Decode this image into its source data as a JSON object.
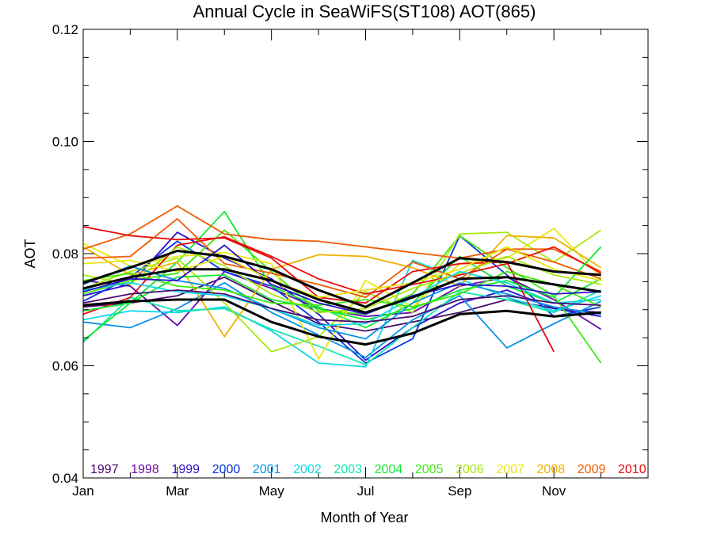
{
  "chart_data": {
    "type": "line",
    "title": "Annual Cycle in SeaWiFS(ST108) AOT(865)",
    "xlabel": "Month of Year",
    "ylabel": "AOT",
    "xlim": [
      1,
      13
    ],
    "ylim": [
      0.04,
      0.12
    ],
    "x_ticks": [
      {
        "x": 1,
        "label": "Jan"
      },
      {
        "x": 3,
        "label": "Mar"
      },
      {
        "x": 5,
        "label": "May"
      },
      {
        "x": 7,
        "label": "Jul"
      },
      {
        "x": 9,
        "label": "Sep"
      },
      {
        "x": 11,
        "label": "Nov"
      }
    ],
    "y_ticks": [
      {
        "y": 0.04,
        "label": "0.04"
      },
      {
        "y": 0.06,
        "label": "0.06"
      },
      {
        "y": 0.08,
        "label": "0.08"
      },
      {
        "y": 0.1,
        "label": "0.10"
      },
      {
        "y": 0.12,
        "label": "0.12"
      }
    ],
    "grid": false,
    "legend_position": "bottom, inside plot",
    "x": [
      1,
      2,
      3,
      4,
      5,
      6,
      7,
      8,
      9,
      10,
      11,
      12
    ],
    "series": [
      {
        "name": "1997",
        "color": "#4b0a6e",
        "values": [
          0.0705,
          0.0712,
          0.0725,
          0.0758,
          0.0715,
          0.0675,
          0.0662,
          0.0678,
          0.0695,
          0.0718,
          0.0702,
          0.0695
        ]
      },
      {
        "name": "1998",
        "color": "#6a0aa8",
        "values": [
          0.0752,
          0.0742,
          0.0672,
          0.0768,
          0.0738,
          0.0702,
          0.0688,
          0.0695,
          0.0742,
          0.0758,
          0.0718,
          0.0665
        ]
      },
      {
        "name": "1999",
        "color": "#2a10c8",
        "values": [
          0.0725,
          0.0745,
          0.0838,
          0.0792,
          0.0755,
          0.0692,
          0.061,
          0.0668,
          0.0712,
          0.0735,
          0.0702,
          0.0688
        ]
      },
      {
        "name": "2000",
        "color": "#0a35e0",
        "values": [
          0.0715,
          0.0758,
          0.0822,
          0.0768,
          0.0742,
          0.0678,
          0.0605,
          0.0648,
          0.0832,
          0.0762,
          0.0688,
          0.0705
        ]
      },
      {
        "name": "2001",
        "color": "#0a90e8",
        "values": [
          0.0678,
          0.0668,
          0.0702,
          0.0748,
          0.0695,
          0.0655,
          0.0615,
          0.0682,
          0.0725,
          0.0632,
          0.0675,
          0.0715
        ]
      },
      {
        "name": "2002",
        "color": "#10d8e8",
        "values": [
          0.0682,
          0.0698,
          0.0695,
          0.0705,
          0.0662,
          0.0605,
          0.0598,
          0.0788,
          0.0755,
          0.0722,
          0.0698,
          0.0725
        ]
      },
      {
        "name": "2003",
        "color": "#10e8b0",
        "values": [
          0.0642,
          0.0722,
          0.0698,
          0.0702,
          0.0665,
          0.0635,
          0.0602,
          0.0668,
          0.0732,
          0.0718,
          0.0695,
          0.0735
        ]
      },
      {
        "name": "2004",
        "color": "#10e830",
        "values": [
          0.0645,
          0.0712,
          0.0785,
          0.0875,
          0.0742,
          0.0705,
          0.0668,
          0.0712,
          0.0795,
          0.0742,
          0.0712,
          0.0755
        ]
      },
      {
        "name": "2005",
        "color": "#40e810",
        "values": [
          0.0728,
          0.0752,
          0.0765,
          0.0842,
          0.0768,
          0.0698,
          0.0692,
          0.0728,
          0.0832,
          0.0775,
          0.0725,
          0.0605
        ]
      },
      {
        "name": "2006",
        "color": "#a8e810",
        "values": [
          0.0738,
          0.0768,
          0.0792,
          0.0712,
          0.0625,
          0.0652,
          0.0732,
          0.0695,
          0.0835,
          0.0838,
          0.0785,
          0.0842
        ]
      },
      {
        "name": "2007",
        "color": "#e8e810",
        "values": [
          0.0818,
          0.0778,
          0.0795,
          0.0802,
          0.0782,
          0.0612,
          0.0752,
          0.0705,
          0.0782,
          0.0792,
          0.0845,
          0.0758
        ]
      },
      {
        "name": "2008",
        "color": "#f0b000",
        "values": [
          0.0812,
          0.0762,
          0.0785,
          0.0652,
          0.0772,
          0.0798,
          0.0795,
          0.0775,
          0.0742,
          0.0832,
          0.0828,
          0.0775
        ]
      },
      {
        "name": "2009",
        "color": "#f05a00",
        "values": [
          0.0808,
          0.0835,
          0.0885,
          0.0835,
          0.0825,
          0.0822,
          0.0812,
          0.0802,
          0.0792,
          0.0808,
          0.0808,
          0.0768
        ]
      },
      {
        "name": "2010",
        "color": "#e80a0a",
        "values": [
          0.0848,
          0.0832,
          0.0825,
          0.0828,
          0.0792,
          0.0722,
          0.0712,
          0.0768,
          0.0782,
          0.0785,
          0.0625,
          null
        ]
      },
      {
        "name": "",
        "color": "#f05a00",
        "values": [
          0.0792,
          0.0795,
          0.0862,
          0.0782,
          0.0765,
          0.0745,
          0.0722,
          0.0785,
          0.0755,
          0.0808,
          0.0785,
          0.0755
        ]
      },
      {
        "name": "",
        "color": "#e80a0a",
        "values": [
          0.0692,
          0.0722,
          0.0815,
          0.083,
          0.0795,
          0.0755,
          0.0728,
          0.0745,
          0.0762,
          0.0782,
          0.0812,
          0.0765
        ]
      },
      {
        "name": "",
        "color": "#10e830",
        "values": [
          0.0698,
          0.0712,
          0.0758,
          0.0762,
          0.0718,
          0.0702,
          0.0682,
          0.0702,
          0.0735,
          0.0752,
          0.0722,
          0.0812
        ]
      },
      {
        "name": "",
        "color": "#a8e810",
        "values": [
          0.0762,
          0.0745,
          0.0812,
          0.0778,
          0.0728,
          0.0695,
          0.0702,
          0.0738,
          0.0765,
          0.0795,
          0.0762,
          0.0745
        ]
      },
      {
        "name": "",
        "color": "#0a90e8",
        "values": [
          0.0745,
          0.0778,
          0.0752,
          0.0738,
          0.0702,
          0.0668,
          0.0648,
          0.0712,
          0.0748,
          0.0728,
          0.0705,
          0.0692
        ]
      },
      {
        "name": "",
        "color": "#10d8e8",
        "values": [
          0.0735,
          0.0748,
          0.0732,
          0.0725,
          0.0702,
          0.0672,
          0.0675,
          0.0722,
          0.0768,
          0.0748,
          0.0712,
          0.0718
        ]
      },
      {
        "name": "",
        "color": "#40e810",
        "values": [
          0.0752,
          0.0765,
          0.0742,
          0.0735,
          0.0712,
          0.0708,
          0.0718,
          0.0705,
          0.0728,
          0.0768,
          0.0745,
          0.0705
        ]
      },
      {
        "name": "",
        "color": "#2a10c8",
        "values": [
          0.0732,
          0.0755,
          0.0752,
          0.0815,
          0.0745,
          0.0712,
          0.0692,
          0.0725,
          0.0745,
          0.0742,
          0.0728,
          0.0732
        ]
      },
      {
        "name": "",
        "color": "#e8e810",
        "values": [
          0.0782,
          0.0788,
          0.0768,
          0.0795,
          0.0752,
          0.0722,
          0.0735,
          0.0748,
          0.0772,
          0.0812,
          0.0772,
          0.0752
        ]
      },
      {
        "name": "",
        "color": "#4b0a6e",
        "values": [
          0.0712,
          0.0728,
          0.0735,
          0.0728,
          0.0702,
          0.0682,
          0.0678,
          0.0688,
          0.0718,
          0.0725,
          0.0712,
          0.0708
        ]
      },
      {
        "name": "",
        "color": "#000000",
        "emphasis": true,
        "values": [
          0.0708,
          0.0715,
          0.0718,
          0.0718,
          0.0678,
          0.0652,
          0.0638,
          0.0658,
          0.0692,
          0.0698,
          0.0688,
          0.0695
        ]
      },
      {
        "name": "",
        "color": "#000000",
        "emphasis": true,
        "values": [
          0.0738,
          0.0758,
          0.0772,
          0.0772,
          0.0752,
          0.0718,
          0.0695,
          0.0722,
          0.0755,
          0.0758,
          0.0745,
          0.0732
        ]
      },
      {
        "name": "",
        "color": "#000000",
        "emphasis": true,
        "values": [
          0.0748,
          0.0775,
          0.0805,
          0.0795,
          0.0772,
          0.0735,
          0.0705,
          0.0748,
          0.0792,
          0.0785,
          0.0768,
          0.0762
        ]
      }
    ]
  }
}
